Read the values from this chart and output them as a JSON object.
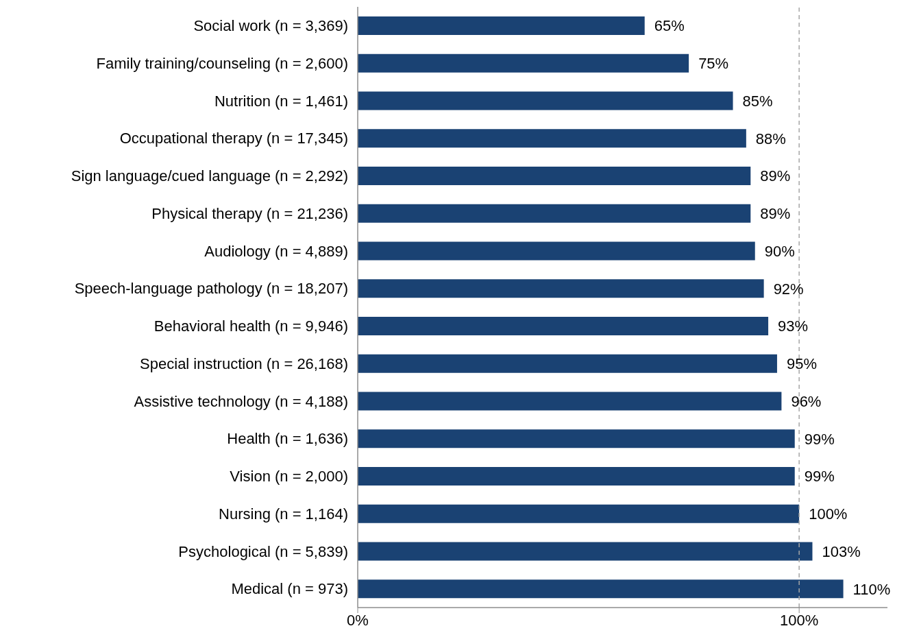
{
  "chart_data": {
    "type": "bar",
    "orientation": "horizontal",
    "categories": [
      "Social work (n = 3,369)",
      "Family training/counseling (n = 2,600)",
      "Nutrition (n = 1,461)",
      "Occupational therapy (n = 17,345)",
      "Sign language/cued language (n = 2,292)",
      "Physical therapy (n = 21,236)",
      "Audiology (n = 4,889)",
      "Speech-language pathology (n = 18,207)",
      "Behavioral health (n = 9,946)",
      "Special instruction (n = 26,168)",
      "Assistive technology (n = 4,188)",
      "Health (n = 1,636)",
      "Vision (n = 2,000)",
      "Nursing (n = 1,164)",
      "Psychological (n = 5,839)",
      "Medical (n = 973)"
    ],
    "values": [
      65,
      75,
      85,
      88,
      89,
      89,
      90,
      92,
      93,
      95,
      96,
      99,
      99,
      100,
      103,
      110
    ],
    "value_labels": [
      "65%",
      "75%",
      "85%",
      "88%",
      "89%",
      "89%",
      "90%",
      "92%",
      "93%",
      "95%",
      "96%",
      "99%",
      "99%",
      "100%",
      "103%",
      "110%"
    ],
    "color": "#1a4273",
    "xlim": [
      0,
      120
    ],
    "xticks": [
      {
        "value": 0,
        "label": "0%"
      },
      {
        "value": 100,
        "label": "100%"
      }
    ],
    "ref_lines": [
      {
        "axis": "x",
        "value": 100,
        "color": "#a6a6a6",
        "line_style": "dashed"
      }
    ],
    "grid": false,
    "legend": false
  }
}
